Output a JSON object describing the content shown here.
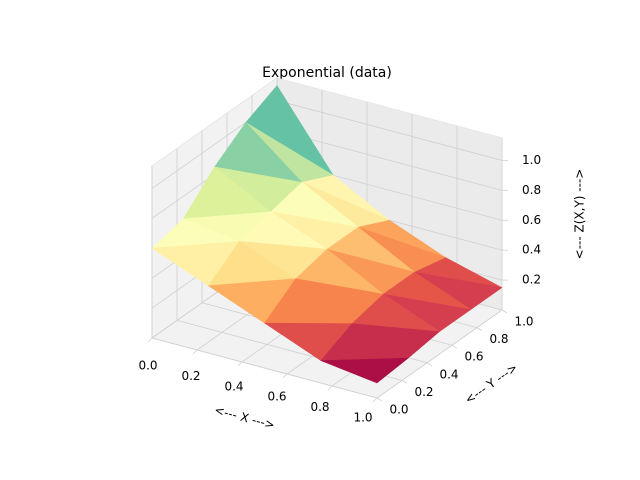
{
  "chart_data": {
    "type": "surface3d",
    "title": "Exponential (data)",
    "xlabel": "<--- X --->",
    "ylabel": "<--- Y --->",
    "zlabel": "<--- Z(X,Y) --->",
    "colormap": "Spectral",
    "x": [
      0,
      0.25,
      0.5,
      0.75,
      1
    ],
    "y": [
      0,
      0.25,
      0.5,
      0.75,
      1
    ],
    "z": [
      [
        0.6,
        0.45,
        0.3,
        0.15,
        0.1
      ],
      [
        0.65,
        0.6,
        0.45,
        0.25,
        0.12
      ],
      [
        0.85,
        0.65,
        0.5,
        0.3,
        0.15
      ],
      [
        1.0,
        0.7,
        0.5,
        0.3,
        0.15
      ],
      [
        1.1,
        0.6,
        0.4,
        0.25,
        0.15
      ]
    ],
    "xlim": [
      0,
      1
    ],
    "ylim": [
      0,
      1
    ],
    "zlim": [
      0,
      1.15
    ],
    "xticks": [
      {
        "value": 0,
        "label": "0.0"
      },
      0.2,
      0.4,
      0.6,
      0.8,
      {
        "value": 1,
        "label": "1.0"
      }
    ],
    "yticks": [
      {
        "value": 0,
        "label": "0.0"
      },
      0.2,
      0.4,
      0.6,
      0.8,
      {
        "value": 1,
        "label": "1.0"
      }
    ],
    "zticks": [
      0.2,
      0.4,
      0.6,
      0.8,
      {
        "value": 1,
        "label": "1.0"
      }
    ],
    "grid": true
  }
}
